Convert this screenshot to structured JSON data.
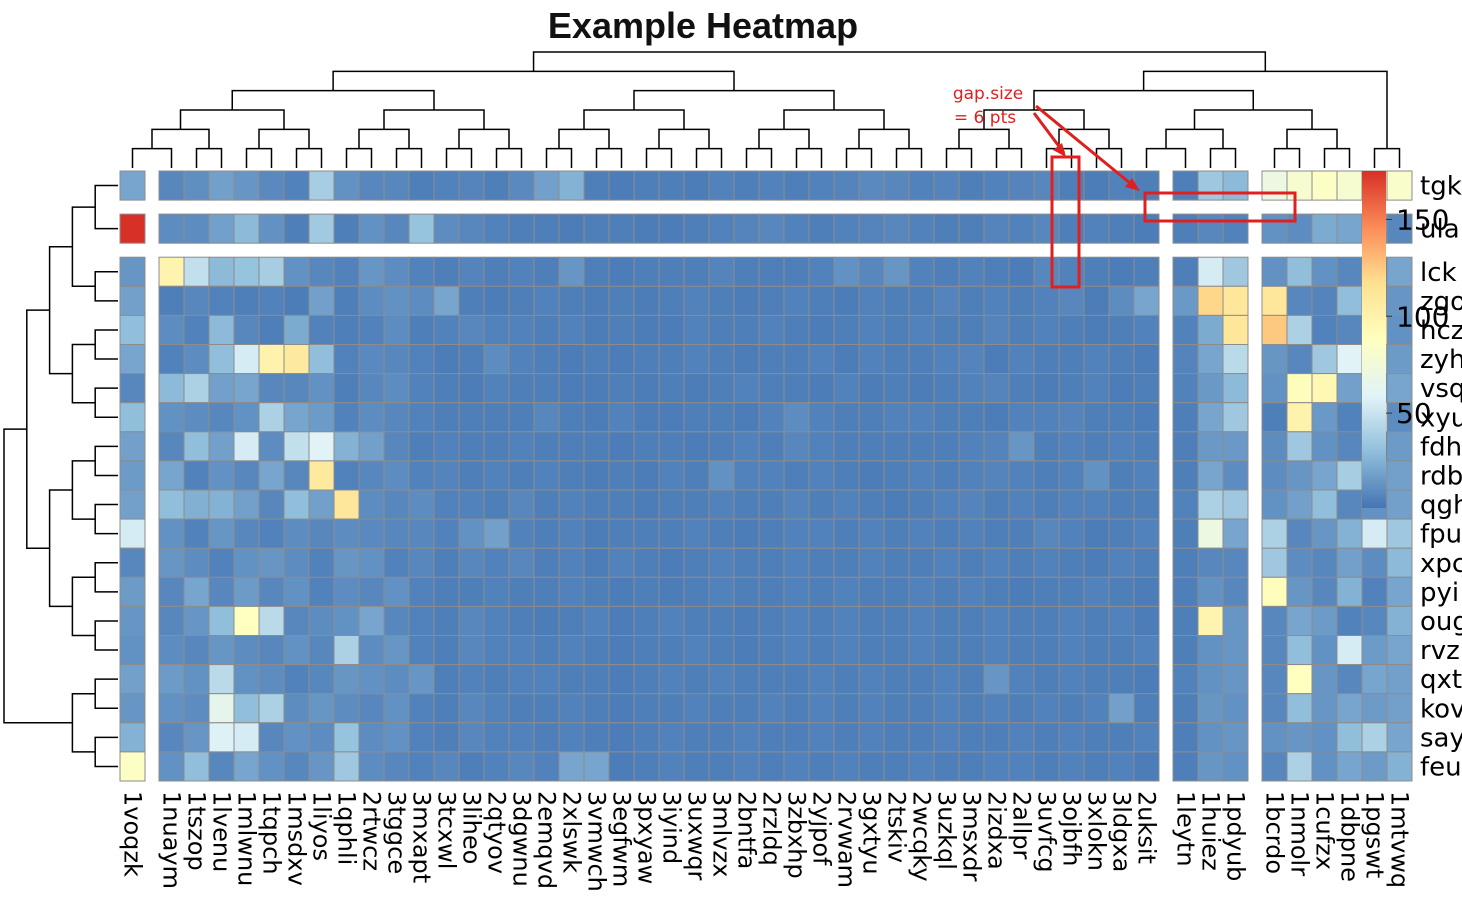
{
  "chart_data": {
    "type": "heatmap",
    "title": "Example Heatmap",
    "rows": [
      "tgk",
      "ula",
      "lck",
      "zgo",
      "hcz",
      "zyh",
      "vsq",
      "xyu",
      "fdh",
      "rdb",
      "qgh",
      "fpu",
      "xpc",
      "pyi",
      "oug",
      "rvz",
      "qxt",
      "kov",
      "say",
      "feu"
    ],
    "row_gaps_after": [
      0,
      1
    ],
    "columns": [
      "1voqzk",
      "1nuaym",
      "1tszop",
      "1lvenu",
      "1mlwnu",
      "1tqpch",
      "1msdxv",
      "1liyos",
      "1qphli",
      "2rtwcz",
      "3tggce",
      "3mxapt",
      "3tcxwl",
      "3liheo",
      "2qtyov",
      "3dgwnu",
      "2emqvd",
      "2xlswk",
      "3vmwch",
      "3egfwm",
      "3pxyaw",
      "3iyind",
      "3uxwqr",
      "3mlvzx",
      "2bntfa",
      "2rzldq",
      "3zbxhp",
      "2yjpof",
      "2rvwam",
      "3gxtyu",
      "2tskiv",
      "2wcqky",
      "3uzkql",
      "3msxdr",
      "2izdxa",
      "2allpr",
      "3uvfcg",
      "3ojbfh",
      "3xlokn",
      "3ldgxa",
      "2uksit",
      "1leytn",
      "1huiez",
      "1pdyub",
      "1bcrdo",
      "1nmolr",
      "1cufzx",
      "1dbpne",
      "1pgswt",
      "1mtvwq"
    ],
    "col_gaps_after": [
      0,
      40,
      43
    ],
    "legend": {
      "ticks": [
        50,
        100,
        150
      ],
      "min": 1,
      "max": 175,
      "colors": [
        "#4575b4",
        "#91bfdb",
        "#e0f3f8",
        "#ffffbf",
        "#fee090",
        "#fc8d59",
        "#d73027"
      ]
    },
    "annotation": {
      "text_line1": "gap.size",
      "text_line2": "= 6 pts"
    },
    "values": [
      [
        20,
        8,
        11,
        18,
        14,
        9,
        6,
        38,
        12,
        8,
        8,
        5,
        6,
        7,
        5,
        9,
        18,
        25,
        5,
        4,
        5,
        5,
        4,
        6,
        5,
        6,
        5,
        6,
        7,
        9,
        8,
        6,
        7,
        5,
        6,
        7,
        8,
        5,
        4,
        6,
        5,
        5,
        35,
        28,
        70,
        80,
        85,
        80,
        90,
        82
      ],
      [
        175,
        10,
        10,
        18,
        28,
        12,
        5,
        36,
        5,
        12,
        8,
        32,
        10,
        8,
        6,
        5,
        5,
        4,
        5,
        5,
        4,
        4,
        5,
        6,
        7,
        8,
        6,
        5,
        6,
        7,
        8,
        6,
        5,
        5,
        7,
        6,
        8,
        5,
        6,
        5,
        4,
        5,
        8,
        6,
        12,
        10,
        22,
        20,
        14,
        8
      ],
      [
        14,
        98,
        48,
        28,
        32,
        38,
        12,
        8,
        6,
        14,
        10,
        6,
        5,
        7,
        5,
        6,
        5,
        14,
        5,
        4,
        5,
        5,
        5,
        7,
        5,
        5,
        5,
        6,
        12,
        8,
        14,
        6,
        5,
        6,
        5,
        4,
        8,
        6,
        5,
        4,
        5,
        5,
        55,
        35,
        12,
        30,
        12,
        8,
        6,
        20
      ],
      [
        18,
        5,
        8,
        6,
        5,
        6,
        4,
        18,
        5,
        10,
        12,
        10,
        20,
        5,
        4,
        5,
        6,
        5,
        4,
        5,
        4,
        5,
        6,
        5,
        4,
        5,
        6,
        5,
        4,
        6,
        5,
        5,
        7,
        5,
        6,
        5,
        6,
        8,
        4,
        10,
        20,
        15,
        120,
        110,
        110,
        8,
        7,
        30,
        5,
        14
      ],
      [
        30,
        10,
        6,
        28,
        8,
        5,
        22,
        6,
        5,
        6,
        10,
        5,
        6,
        8,
        6,
        6,
        5,
        6,
        4,
        5,
        4,
        4,
        6,
        5,
        5,
        6,
        5,
        4,
        5,
        6,
        5,
        6,
        5,
        5,
        7,
        5,
        6,
        5,
        4,
        5,
        6,
        6,
        22,
        110,
        125,
        40,
        6,
        8,
        85,
        12
      ],
      [
        20,
        6,
        10,
        30,
        55,
        100,
        108,
        30,
        6,
        9,
        8,
        6,
        4,
        5,
        10,
        6,
        5,
        4,
        5,
        4,
        5,
        5,
        6,
        5,
        4,
        5,
        5,
        6,
        4,
        6,
        5,
        5,
        6,
        7,
        4,
        6,
        5,
        5,
        6,
        5,
        4,
        7,
        20,
        45,
        14,
        8,
        35,
        60,
        25,
        16
      ],
      [
        8,
        28,
        40,
        18,
        20,
        8,
        8,
        12,
        5,
        8,
        10,
        6,
        5,
        4,
        6,
        5,
        5,
        4,
        4,
        5,
        4,
        5,
        4,
        5,
        6,
        5,
        5,
        4,
        6,
        4,
        5,
        4,
        5,
        6,
        7,
        5,
        4,
        5,
        6,
        4,
        5,
        6,
        15,
        28,
        12,
        90,
        95,
        18,
        8,
        20
      ],
      [
        30,
        12,
        10,
        8,
        12,
        40,
        20,
        16,
        6,
        10,
        8,
        6,
        5,
        5,
        5,
        5,
        8,
        5,
        4,
        6,
        4,
        4,
        5,
        5,
        4,
        6,
        10,
        6,
        5,
        5,
        6,
        6,
        5,
        5,
        4,
        6,
        6,
        7,
        5,
        5,
        4,
        5,
        20,
        35,
        5,
        100,
        15,
        6,
        90,
        10
      ],
      [
        18,
        8,
        30,
        18,
        55,
        10,
        48,
        60,
        25,
        18,
        8,
        5,
        6,
        5,
        5,
        6,
        5,
        5,
        5,
        4,
        5,
        5,
        4,
        5,
        6,
        5,
        8,
        6,
        5,
        5,
        5,
        5,
        5,
        6,
        7,
        14,
        5,
        6,
        5,
        6,
        5,
        5,
        15,
        15,
        10,
        35,
        12,
        8,
        6,
        16
      ],
      [
        16,
        20,
        6,
        12,
        8,
        20,
        8,
        108,
        6,
        8,
        10,
        6,
        7,
        5,
        6,
        5,
        6,
        5,
        4,
        5,
        4,
        6,
        5,
        12,
        6,
        6,
        5,
        6,
        5,
        4,
        5,
        6,
        5,
        6,
        7,
        6,
        5,
        6,
        12,
        5,
        6,
        5,
        20,
        10,
        10,
        14,
        20,
        38,
        20,
        18
      ],
      [
        18,
        30,
        24,
        25,
        18,
        8,
        30,
        18,
        110,
        10,
        8,
        10,
        6,
        6,
        5,
        8,
        5,
        6,
        5,
        5,
        4,
        5,
        5,
        6,
        5,
        5,
        7,
        5,
        6,
        5,
        4,
        5,
        6,
        7,
        5,
        6,
        5,
        6,
        6,
        5,
        5,
        6,
        40,
        35,
        12,
        18,
        30,
        8,
        12,
        18
      ],
      [
        55,
        12,
        6,
        14,
        8,
        6,
        10,
        8,
        10,
        9,
        8,
        8,
        6,
        12,
        18,
        6,
        5,
        6,
        4,
        5,
        5,
        5,
        6,
        5,
        4,
        5,
        6,
        6,
        5,
        6,
        5,
        6,
        5,
        6,
        5,
        5,
        8,
        6,
        4,
        5,
        6,
        5,
        70,
        20,
        40,
        8,
        14,
        25,
        55,
        35
      ],
      [
        8,
        14,
        10,
        6,
        12,
        14,
        10,
        6,
        14,
        12,
        6,
        8,
        5,
        8,
        6,
        8,
        5,
        6,
        4,
        6,
        5,
        4,
        5,
        6,
        5,
        5,
        6,
        5,
        5,
        6,
        5,
        5,
        6,
        5,
        6,
        5,
        6,
        5,
        4,
        6,
        5,
        5,
        8,
        8,
        35,
        10,
        8,
        18,
        10,
        28
      ],
      [
        16,
        8,
        20,
        8,
        16,
        8,
        12,
        6,
        10,
        8,
        12,
        6,
        5,
        5,
        6,
        5,
        5,
        6,
        5,
        4,
        5,
        4,
        5,
        6,
        5,
        5,
        6,
        5,
        6,
        5,
        5,
        6,
        5,
        6,
        5,
        4,
        5,
        5,
        6,
        5,
        4,
        5,
        12,
        8,
        90,
        14,
        8,
        25,
        6,
        20
      ],
      [
        14,
        8,
        14,
        30,
        88,
        45,
        8,
        10,
        12,
        20,
        8,
        6,
        5,
        8,
        6,
        5,
        4,
        5,
        6,
        4,
        5,
        6,
        5,
        5,
        4,
        5,
        6,
        5,
        6,
        5,
        5,
        6,
        5,
        5,
        6,
        5,
        5,
        6,
        5,
        6,
        4,
        5,
        98,
        14,
        8,
        20,
        16,
        6,
        8,
        25
      ],
      [
        12,
        10,
        8,
        14,
        10,
        8,
        12,
        8,
        40,
        10,
        14,
        6,
        5,
        8,
        6,
        6,
        5,
        6,
        5,
        4,
        5,
        5,
        6,
        5,
        4,
        5,
        6,
        5,
        6,
        5,
        5,
        6,
        5,
        5,
        6,
        5,
        5,
        6,
        5,
        5,
        6,
        5,
        12,
        14,
        8,
        30,
        12,
        55,
        16,
        20
      ],
      [
        18,
        16,
        12,
        45,
        12,
        10,
        6,
        8,
        14,
        12,
        10,
        14,
        5,
        6,
        5,
        6,
        6,
        5,
        5,
        4,
        5,
        6,
        5,
        6,
        5,
        5,
        5,
        6,
        5,
        6,
        5,
        5,
        6,
        5,
        14,
        6,
        5,
        6,
        5,
        5,
        4,
        6,
        12,
        14,
        8,
        88,
        14,
        8,
        20,
        18
      ],
      [
        14,
        12,
        10,
        65,
        30,
        40,
        10,
        14,
        10,
        8,
        12,
        6,
        5,
        8,
        6,
        5,
        5,
        6,
        5,
        4,
        5,
        5,
        6,
        5,
        5,
        6,
        5,
        6,
        5,
        6,
        5,
        5,
        6,
        5,
        6,
        5,
        6,
        5,
        6,
        18,
        5,
        5,
        14,
        12,
        8,
        30,
        14,
        20,
        16,
        18
      ],
      [
        25,
        8,
        14,
        58,
        55,
        8,
        12,
        10,
        32,
        10,
        12,
        6,
        5,
        8,
        6,
        6,
        5,
        6,
        5,
        4,
        5,
        6,
        5,
        5,
        6,
        5,
        5,
        6,
        5,
        6,
        5,
        5,
        6,
        5,
        5,
        6,
        5,
        6,
        5,
        5,
        6,
        5,
        12,
        14,
        12,
        14,
        12,
        30,
        40,
        20
      ],
      [
        85,
        12,
        30,
        8,
        20,
        12,
        8,
        14,
        35,
        10,
        8,
        6,
        8,
        5,
        6,
        8,
        6,
        20,
        20,
        4,
        5,
        6,
        5,
        5,
        6,
        5,
        6,
        5,
        6,
        5,
        5,
        6,
        5,
        5,
        6,
        6,
        5,
        6,
        5,
        6,
        4,
        5,
        14,
        12,
        8,
        40,
        12,
        20,
        16,
        25
      ]
    ]
  }
}
